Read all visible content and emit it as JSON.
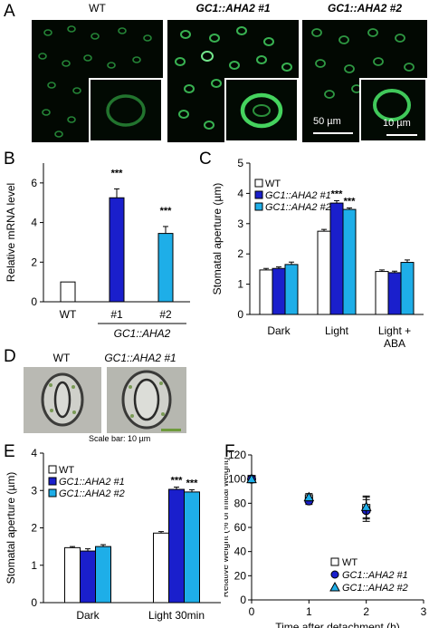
{
  "panels": {
    "a": "A",
    "b": "B",
    "c": "C",
    "d": "D",
    "e": "E",
    "f": "F"
  },
  "panel_a": {
    "labels": [
      "WT",
      "GC1::AHA2 #1",
      "GC1::AHA2 #2"
    ],
    "scale_main": "50 µm",
    "scale_inset": "10 µm"
  },
  "panel_d": {
    "labels": [
      "WT",
      "GC1::AHA2 #1"
    ],
    "scale": "Scale bar: 10 µm"
  },
  "colors": {
    "wt": "#ffffff",
    "line1": "#1a1fcc",
    "line2": "#1eaee8",
    "fluorescence": "#3dd65a"
  },
  "chart_data": [
    {
      "panel": "B",
      "type": "bar",
      "ylabel": "Relative mRNA level",
      "ylim": [
        0,
        7
      ],
      "yticks": [
        "0",
        "2",
        "4",
        "6"
      ],
      "categories": [
        "WT",
        "#1",
        "#2"
      ],
      "group_label": "GC1::AHA2",
      "values": [
        1.0,
        5.25,
        3.45
      ],
      "errors": [
        0,
        0.45,
        0.35
      ],
      "significance": [
        "",
        "***",
        "***"
      ]
    },
    {
      "panel": "C",
      "type": "bar",
      "ylabel": "Stomatal aperture (µm)",
      "ylim": [
        0,
        5
      ],
      "yticks": [
        "0",
        "1",
        "2",
        "3",
        "4",
        "5"
      ],
      "categories": [
        "Dark",
        "Light",
        "Light + ABA"
      ],
      "series": [
        {
          "name": "WT",
          "values": [
            1.47,
            2.75,
            1.42
          ],
          "errors": [
            0.05,
            0.06,
            0.05
          ]
        },
        {
          "name": "GC1::AHA2 #1",
          "values": [
            1.52,
            3.68,
            1.38
          ],
          "errors": [
            0.05,
            0.08,
            0.05
          ]
        },
        {
          "name": "GC1::AHA2 #2",
          "values": [
            1.65,
            3.47,
            1.72
          ],
          "errors": [
            0.08,
            0.05,
            0.08
          ]
        }
      ],
      "significance": [
        [
          "",
          "",
          ""
        ],
        [
          "",
          "***",
          "***"
        ],
        [
          "",
          "",
          ""
        ]
      ]
    },
    {
      "panel": "E",
      "type": "bar",
      "ylabel": "Stomatal aperture (µm)",
      "ylim": [
        0,
        4
      ],
      "yticks": [
        "0",
        "1",
        "2",
        "3",
        "4"
      ],
      "categories": [
        "Dark",
        "Light 30min"
      ],
      "series": [
        {
          "name": "WT",
          "values": [
            1.47,
            1.86
          ],
          "errors": [
            0.03,
            0.04
          ]
        },
        {
          "name": "GC1::AHA2 #1",
          "values": [
            1.38,
            3.03
          ],
          "errors": [
            0.06,
            0.06
          ]
        },
        {
          "name": "GC1::AHA2 #2",
          "values": [
            1.5,
            2.96
          ],
          "errors": [
            0.05,
            0.06
          ]
        }
      ],
      "significance": [
        [
          "",
          "",
          ""
        ],
        [
          "",
          "***",
          "***"
        ]
      ]
    },
    {
      "panel": "F",
      "type": "scatter",
      "xlabel": "Time after detachment (h)",
      "ylabel": "Relative weight (% of initial weight)",
      "xlim": [
        0,
        3
      ],
      "ylim": [
        0,
        120
      ],
      "xticks": [
        "0",
        "1",
        "2",
        "3"
      ],
      "yticks": [
        "0",
        "20",
        "40",
        "60",
        "80",
        "100",
        "120"
      ],
      "x": [
        0,
        1,
        2
      ],
      "series": [
        {
          "name": "WT",
          "values": [
            100,
            84,
            76
          ],
          "errors": [
            0,
            3,
            9
          ]
        },
        {
          "name": "GC1::AHA2 #1",
          "values": [
            100,
            82,
            74
          ],
          "errors": [
            0,
            3,
            9
          ]
        },
        {
          "name": "GC1::AHA2 #2",
          "values": [
            100,
            85,
            77
          ],
          "errors": [
            0,
            3,
            9
          ]
        }
      ]
    }
  ]
}
